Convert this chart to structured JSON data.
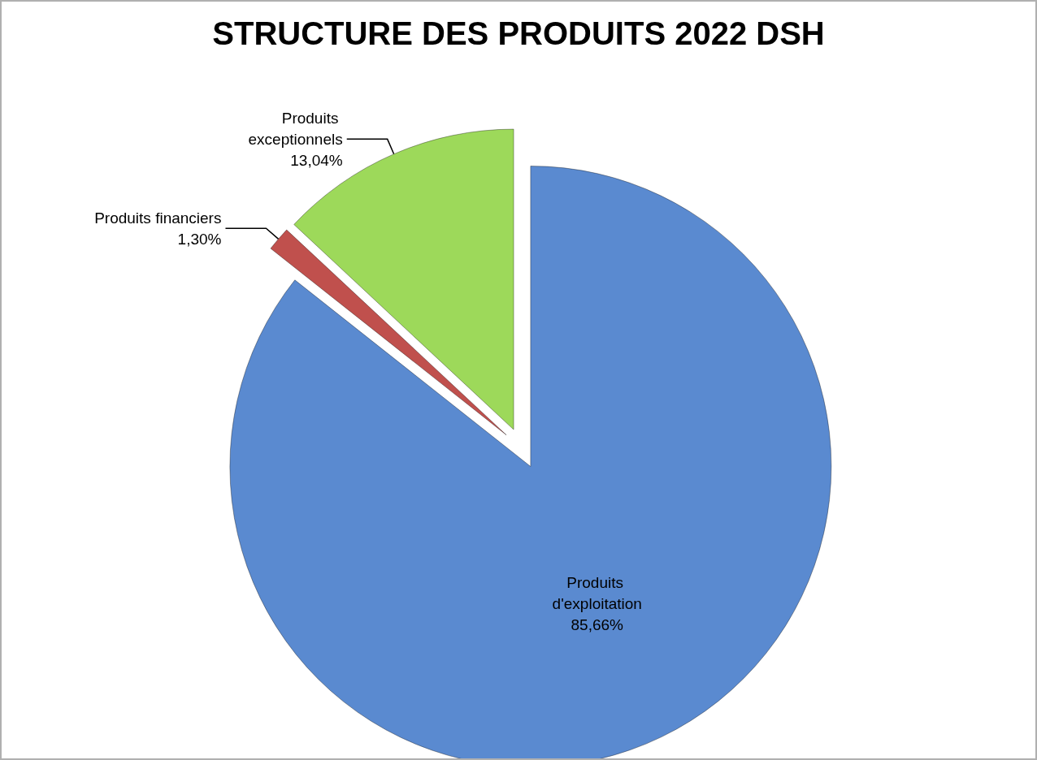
{
  "chart_data": {
    "type": "pie",
    "title": "STRUCTURE DES PRODUITS 2022 DSH",
    "categories": [
      "Produits d'exploitation",
      "Produits financiers",
      "Produits exceptionnels"
    ],
    "values": [
      85.66,
      1.3,
      13.04
    ],
    "value_labels": [
      "85,66%",
      "1,30%",
      "13,04%"
    ],
    "colors": [
      "#5a8ad0",
      "#c0504d",
      "#9dd95a"
    ],
    "legend": false
  }
}
